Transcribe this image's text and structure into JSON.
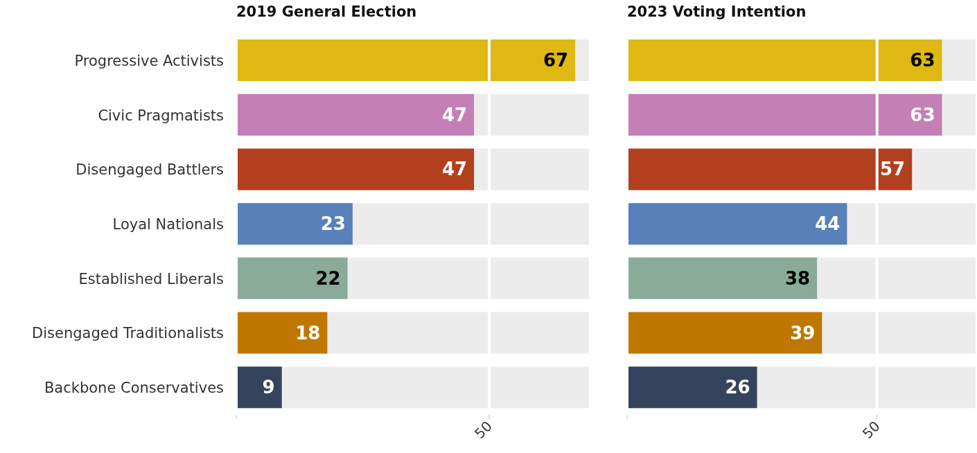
{
  "chart_data": [
    {
      "type": "bar",
      "title": "2019 General Election",
      "orientation": "horizontal",
      "categories": [
        "Progressive Activists",
        "Civic Pragmatists",
        "Disengaged Battlers",
        "Loyal Nationals",
        "Established Liberals",
        "Disengaged Traditionalists",
        "Backbone Conservatives"
      ],
      "values": [
        67,
        47,
        47,
        23,
        22,
        18,
        9
      ],
      "colors": [
        "#dfb813",
        "#c47fb5",
        "#b2401f",
        "#5880b9",
        "#8bab9a",
        "#bf7700",
        "#34445c"
      ],
      "xlim": [
        0,
        70
      ],
      "xticks": [
        {
          "value": 0,
          "label": null
        },
        50
      ],
      "grid": "x",
      "data_labels": true
    },
    {
      "type": "bar",
      "title": "2023 Voting Intention",
      "orientation": "horizontal",
      "categories": [
        null,
        null,
        null,
        null,
        null,
        null,
        null
      ],
      "values": [
        63,
        63,
        57,
        44,
        38,
        39,
        26
      ],
      "colors": [
        "#dfb813",
        "#c47fb5",
        "#b2401f",
        "#5880b9",
        "#8bab9a",
        "#bf7700",
        "#34445c"
      ],
      "xlim": [
        0,
        70
      ],
      "xticks": [
        {
          "value": 0,
          "label": null
        },
        50
      ],
      "grid": "x",
      "data_labels": true,
      "tick_labels": "x"
    }
  ]
}
